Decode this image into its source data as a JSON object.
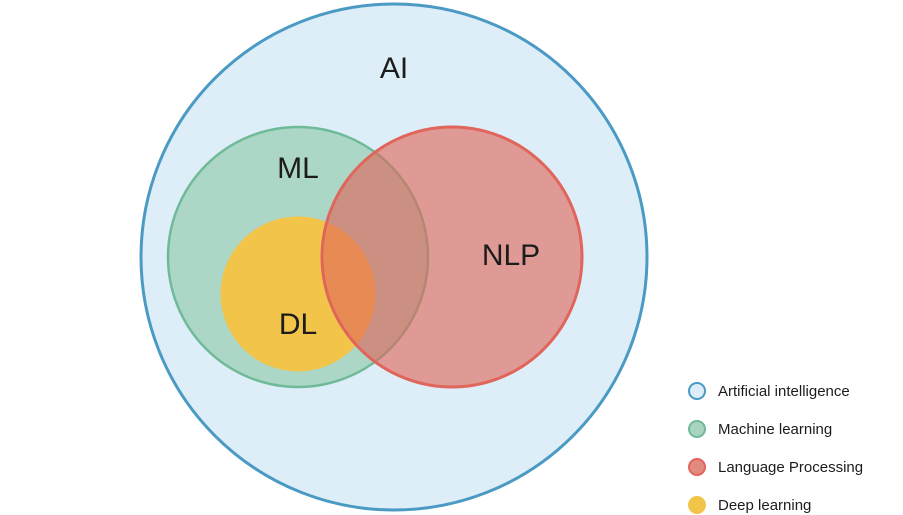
{
  "diagram": {
    "circles": {
      "ai": {
        "label": "AI",
        "fill": "#ddeef8",
        "stroke": "#4a9ac4"
      },
      "ml": {
        "label": "ML",
        "fill": "#a9d4c2",
        "stroke": "#6fba98"
      },
      "dl": {
        "label": "DL",
        "fill": "#f2c449",
        "stroke": "#f2c449"
      },
      "nlp": {
        "label": "NLP",
        "fill": "#e38a80",
        "stroke": "#e0655a"
      }
    }
  },
  "legend": {
    "items": [
      {
        "label": "Artificial intelligence",
        "fill": "#ddeef8",
        "stroke": "#4a9ac4"
      },
      {
        "label": "Machine learning",
        "fill": "#a9d4c2",
        "stroke": "#6fba98"
      },
      {
        "label": "Language Processing",
        "fill": "#e38a80",
        "stroke": "#e0655a"
      },
      {
        "label": "Deep learning",
        "fill": "#f2c449",
        "stroke": "#f2c449"
      }
    ]
  }
}
